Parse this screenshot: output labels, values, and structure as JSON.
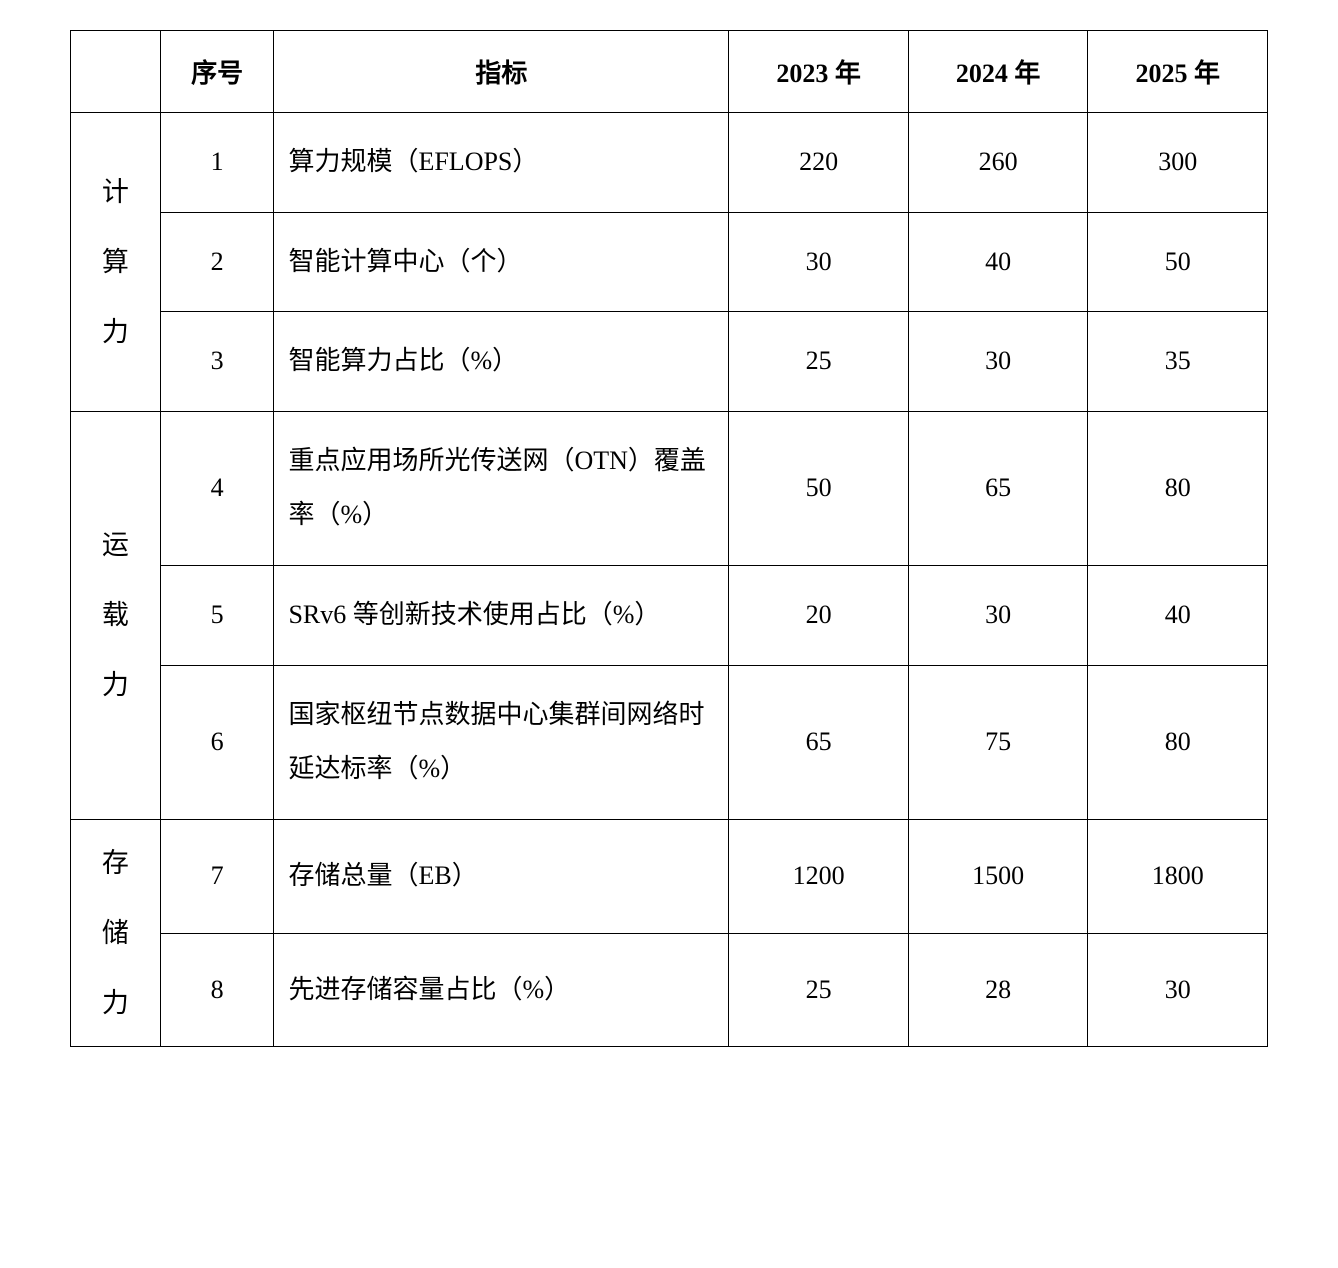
{
  "table": {
    "type": "table",
    "border_color": "#000000",
    "background_color": "#ffffff",
    "text_color": "#000000",
    "font_family": "SimSun/Songti serif",
    "header_fontsize": 26,
    "cell_fontsize": 26,
    "column_widths_pct": [
      7.5,
      9.5,
      38,
      15,
      15,
      15
    ],
    "headers": {
      "category": "",
      "index": "序号",
      "metric": "指标",
      "y2023": "2023 年",
      "y2024": "2024 年",
      "y2025": "2025 年"
    },
    "groups": [
      {
        "label": "计算力",
        "rows": [
          {
            "idx": "1",
            "metric": "算力规模（EFLOPS）",
            "y2023": "220",
            "y2024": "260",
            "y2025": "300"
          },
          {
            "idx": "2",
            "metric": "智能计算中心（个）",
            "y2023": "30",
            "y2024": "40",
            "y2025": "50"
          },
          {
            "idx": "3",
            "metric": "智能算力占比（%）",
            "y2023": "25",
            "y2024": "30",
            "y2025": "35"
          }
        ]
      },
      {
        "label": "运载力",
        "rows": [
          {
            "idx": "4",
            "metric": "重点应用场所光传送网（OTN）覆盖率（%）",
            "y2023": "50",
            "y2024": "65",
            "y2025": "80"
          },
          {
            "idx": "5",
            "metric": "SRv6 等创新技术使用占比（%）",
            "y2023": "20",
            "y2024": "30",
            "y2025": "40"
          },
          {
            "idx": "6",
            "metric": "国家枢纽节点数据中心集群间网络时延达标率（%）",
            "y2023": "65",
            "y2024": "75",
            "y2025": "80"
          }
        ]
      },
      {
        "label": "存储力",
        "rows": [
          {
            "idx": "7",
            "metric": "存储总量（EB）",
            "y2023": "1200",
            "y2024": "1500",
            "y2025": "1800"
          },
          {
            "idx": "8",
            "metric": "先进存储容量占比（%）",
            "y2023": "25",
            "y2024": "28",
            "y2025": "30"
          }
        ]
      }
    ]
  }
}
